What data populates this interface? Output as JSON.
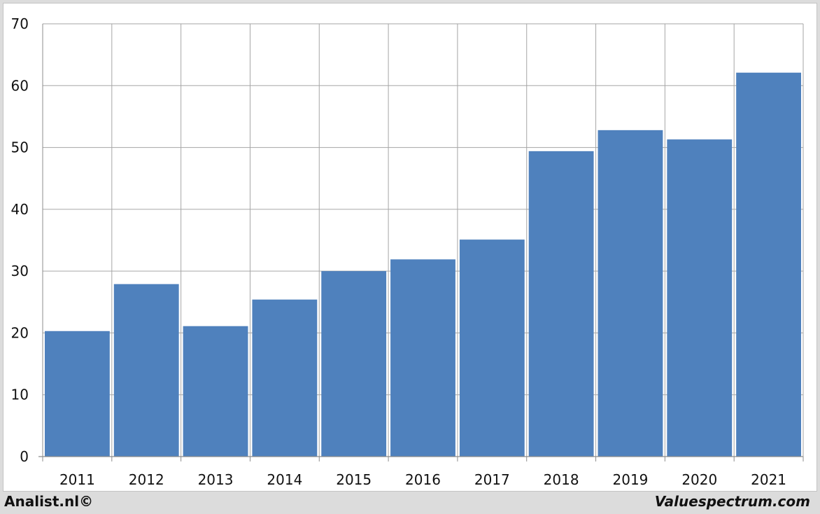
{
  "chart_data": {
    "type": "bar",
    "categories": [
      "2011",
      "2012",
      "2013",
      "2014",
      "2015",
      "2016",
      "2017",
      "2018",
      "2019",
      "2020",
      "2021"
    ],
    "values": [
      20.3,
      27.9,
      21.1,
      25.4,
      30.0,
      31.9,
      35.1,
      49.4,
      52.8,
      51.3,
      62.1
    ],
    "ylim": [
      0,
      70
    ],
    "yticks": [
      "0",
      "10",
      "20",
      "30",
      "40",
      "50",
      "60",
      "70"
    ],
    "grid": true,
    "title": "",
    "xlabel": "",
    "ylabel": "",
    "colors": {
      "bar": "#4f81bd",
      "grid": "#a6a6a6",
      "axis": "#8c8c8c",
      "background": "#ffffff",
      "frame": "#dcdcdc"
    }
  },
  "footer": {
    "left_text": "Analist.nl©",
    "right_text": "Valuespectrum.com"
  }
}
